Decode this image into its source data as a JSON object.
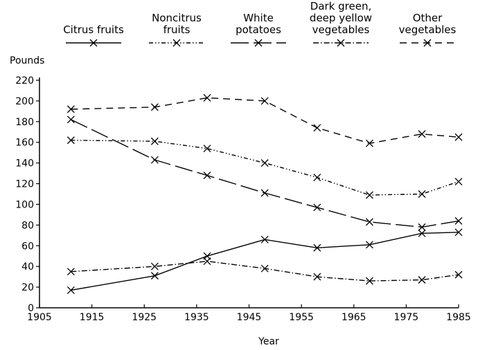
{
  "chart_data": {
    "type": "line",
    "y_label": "Pounds",
    "x_label": "Year",
    "x": [
      1911,
      1927,
      1937,
      1948,
      1958,
      1968,
      1978,
      1985
    ],
    "series": [
      {
        "name": "Citrus fruits",
        "color": "#000000",
        "dash": "none",
        "values": [
          17,
          31,
          50,
          66,
          58,
          61,
          72,
          73
        ]
      },
      {
        "name": "Noncitrus fruits",
        "color": "#000000",
        "dash": "6,3,1.5,3,1.5,3",
        "values": [
          162,
          161,
          154,
          140,
          126,
          109,
          110,
          122
        ]
      },
      {
        "name": "White potatoes",
        "color": "#000000",
        "dash": "26,7",
        "values": [
          182,
          143,
          128,
          111,
          97,
          83,
          78,
          84
        ]
      },
      {
        "name": "Dark green, deep yellow vegetables",
        "color": "#000000",
        "dash": "8,3,1.5,3",
        "values": [
          35,
          40,
          45,
          38,
          30,
          26,
          27,
          32
        ]
      },
      {
        "name": "Other vegetables",
        "color": "#000000",
        "dash": "10,7",
        "values": [
          192,
          194,
          203,
          200,
          174,
          159,
          168,
          165
        ]
      }
    ],
    "xlim": [
      1905,
      1985
    ],
    "xticks": [
      1905,
      1915,
      1925,
      1935,
      1945,
      1955,
      1965,
      1975,
      1985
    ],
    "ylim": [
      0,
      220
    ],
    "yticks": [
      0,
      20,
      40,
      60,
      80,
      100,
      120,
      140,
      160,
      180,
      200,
      220
    ]
  }
}
